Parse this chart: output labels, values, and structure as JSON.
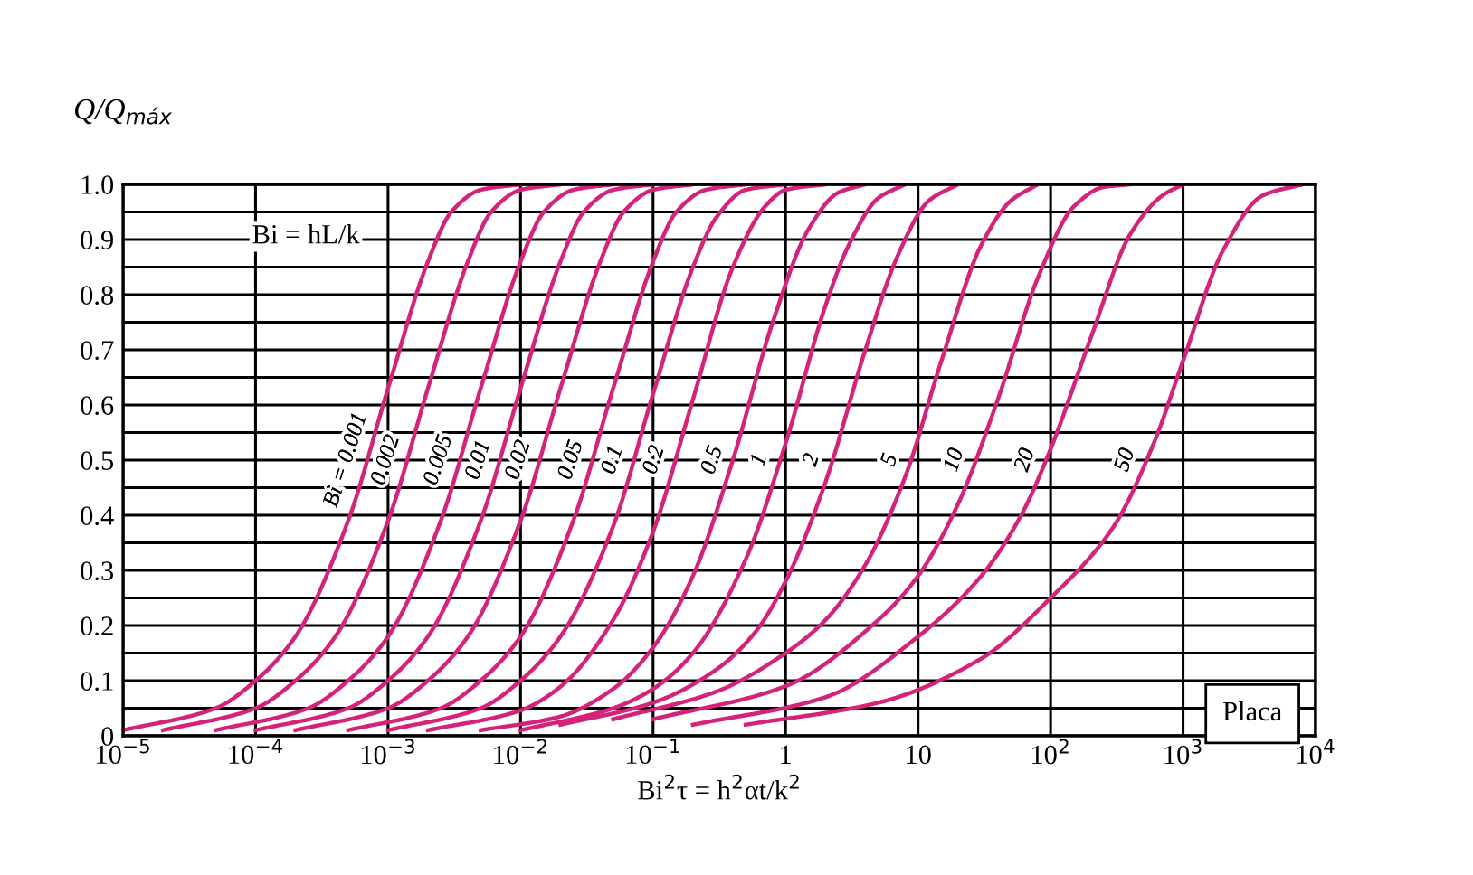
{
  "chart_data": {
    "type": "line",
    "xlabel": "Bi$^{2}$τ = h$^{2}$αt/k$^{2}$",
    "ylabel": "Q/Q$_{máx}$",
    "log": "x",
    "grid": true,
    "marker": "none",
    "line_style": "solid",
    "legend": false,
    "xlim": [
      1e-05,
      10000.0
    ],
    "xticks": [
      {
        "value": 1e-05,
        "label": "10$^{−5}$"
      },
      {
        "value": 0.0001,
        "label": "10$^{−4}$"
      },
      {
        "value": 0.001,
        "label": "10$^{−3}$"
      },
      {
        "value": 0.01,
        "label": "10$^{−2}$"
      },
      {
        "value": 0.1,
        "label": "10$^{−1}$"
      },
      1,
      10,
      {
        "value": 100,
        "label": "10$^{2}$"
      },
      {
        "value": 1000,
        "label": "10$^{3}$"
      },
      {
        "value": 10000,
        "label": "10$^{4}$"
      }
    ],
    "ylim": [
      0,
      1
    ],
    "yticks": [
      0,
      0.1,
      0.2,
      0.3,
      0.4,
      0.5,
      0.6,
      0.7,
      0.8,
      0.9,
      {
        "value": 1,
        "label": "1.0"
      }
    ],
    "annotations": [
      "Bi = hL/k",
      "Placa"
    ],
    "series": [
      {
        "name": "Bi = 0.001",
        "color": "#d4237a",
        "x": [
          1e-05,
          5e-05,
          0.0001,
          0.0002,
          0.0005,
          0.001,
          0.002,
          0.003,
          0.005,
          0.01
        ],
        "values": [
          0.01,
          0.05,
          0.1,
          0.18,
          0.39,
          0.63,
          0.86,
          0.95,
          0.99,
          1.0
        ]
      },
      {
        "name": "0.002",
        "color": "#d4237a",
        "x": [
          2e-05,
          0.0001,
          0.0002,
          0.0004,
          0.001,
          0.002,
          0.004,
          0.006,
          0.01,
          0.02
        ],
        "values": [
          0.01,
          0.05,
          0.1,
          0.18,
          0.39,
          0.63,
          0.86,
          0.95,
          0.99,
          1.0
        ]
      },
      {
        "name": "0.005",
        "color": "#d4237a",
        "x": [
          5e-05,
          0.00025,
          0.0005,
          0.001,
          0.0025,
          0.005,
          0.01,
          0.015,
          0.025,
          0.05
        ],
        "values": [
          0.01,
          0.05,
          0.1,
          0.18,
          0.39,
          0.63,
          0.86,
          0.95,
          0.99,
          1.0
        ]
      },
      {
        "name": "0.01",
        "color": "#d4237a",
        "x": [
          0.0001,
          0.0005,
          0.001,
          0.002,
          0.005,
          0.01,
          0.02,
          0.03,
          0.05,
          0.1
        ],
        "values": [
          0.01,
          0.05,
          0.1,
          0.18,
          0.39,
          0.63,
          0.86,
          0.95,
          0.99,
          1.0
        ]
      },
      {
        "name": "0.02",
        "color": "#d4237a",
        "x": [
          0.0002,
          0.001,
          0.002,
          0.004,
          0.01,
          0.02,
          0.04,
          0.06,
          0.1,
          0.2
        ],
        "values": [
          0.01,
          0.05,
          0.1,
          0.18,
          0.39,
          0.63,
          0.86,
          0.95,
          0.99,
          1.0
        ]
      },
      {
        "name": "0.05",
        "color": "#d4237a",
        "x": [
          0.0005,
          0.0025,
          0.005,
          0.01,
          0.025,
          0.05,
          0.1,
          0.15,
          0.25,
          0.5
        ],
        "values": [
          0.01,
          0.05,
          0.1,
          0.18,
          0.39,
          0.63,
          0.86,
          0.95,
          0.99,
          1.0
        ]
      },
      {
        "name": "0.1",
        "color": "#d4237a",
        "x": [
          0.001,
          0.005,
          0.01,
          0.02,
          0.05,
          0.1,
          0.2,
          0.3,
          0.5,
          1
        ],
        "values": [
          0.01,
          0.05,
          0.1,
          0.18,
          0.38,
          0.62,
          0.85,
          0.94,
          0.99,
          1.0
        ]
      },
      {
        "name": "0.2",
        "color": "#d4237a",
        "x": [
          0.002,
          0.01,
          0.02,
          0.05,
          0.1,
          0.2,
          0.4,
          0.7,
          1,
          2
        ],
        "values": [
          0.01,
          0.046,
          0.089,
          0.21,
          0.37,
          0.61,
          0.85,
          0.96,
          0.99,
          1.0
        ]
      },
      {
        "name": "0.5",
        "color": "#d4237a",
        "x": [
          0.005,
          0.02,
          0.05,
          0.1,
          0.2,
          0.4,
          0.8,
          1.5,
          2.5,
          4
        ],
        "values": [
          0.01,
          0.035,
          0.085,
          0.16,
          0.29,
          0.5,
          0.75,
          0.92,
          0.985,
          1.0
        ]
      },
      {
        "name": "1",
        "color": "#d4237a",
        "x": [
          0.01,
          0.05,
          0.1,
          0.2,
          0.5,
          1,
          2,
          3,
          5,
          8
        ],
        "values": [
          0.01,
          0.05,
          0.085,
          0.15,
          0.32,
          0.53,
          0.78,
          0.89,
          0.975,
          1.0
        ]
      },
      {
        "name": "2",
        "color": "#d4237a",
        "x": [
          0.02,
          0.1,
          0.3,
          0.6,
          1,
          2,
          4,
          7,
          12,
          20
        ],
        "values": [
          0.02,
          0.06,
          0.12,
          0.19,
          0.28,
          0.46,
          0.7,
          0.87,
          0.97,
          1.0
        ]
      },
      {
        "name": "5",
        "color": "#d4237a",
        "x": [
          0.05,
          0.3,
          1,
          2,
          4,
          8,
          15,
          30,
          50,
          80
        ],
        "values": [
          0.03,
          0.08,
          0.15,
          0.21,
          0.31,
          0.47,
          0.68,
          0.89,
          0.97,
          1.0
        ]
      },
      {
        "name": "10",
        "color": "#d4237a",
        "x": [
          0.1,
          1,
          5,
          10,
          20,
          40,
          80,
          150,
          250,
          400
        ],
        "values": [
          0.03,
          0.09,
          0.21,
          0.29,
          0.42,
          0.61,
          0.83,
          0.96,
          0.995,
          1.0
        ]
      },
      {
        "name": "20",
        "color": "#d4237a",
        "x": [
          0.2,
          2,
          10,
          30,
          60,
          100,
          200,
          400,
          700,
          1000
        ],
        "values": [
          0.02,
          0.07,
          0.18,
          0.29,
          0.4,
          0.52,
          0.72,
          0.91,
          0.98,
          1.0
        ]
      },
      {
        "name": "50",
        "color": "#d4237a",
        "x": [
          0.5,
          5,
          30,
          100,
          300,
          600,
          1000,
          2000,
          4000,
          8000
        ],
        "values": [
          0.02,
          0.06,
          0.14,
          0.25,
          0.38,
          0.53,
          0.68,
          0.88,
          0.98,
          1.0
        ]
      }
    ]
  }
}
